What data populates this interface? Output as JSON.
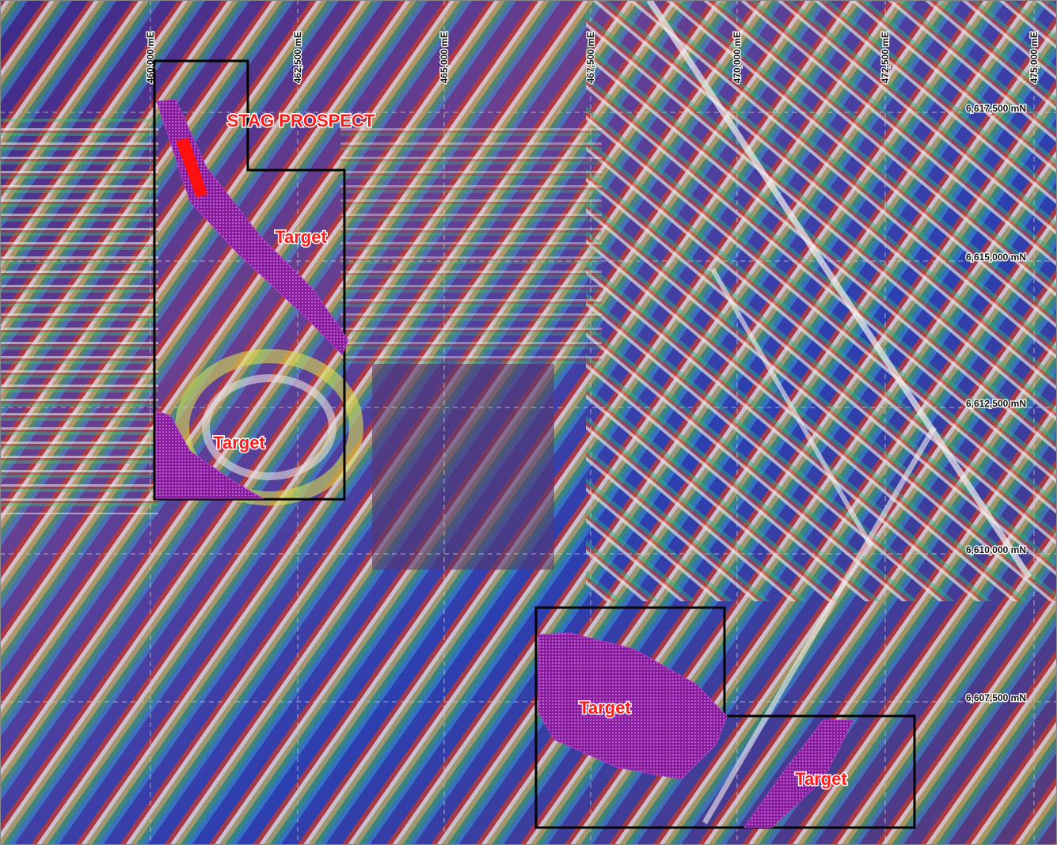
{
  "eastings": [
    "460,000 mE",
    "462,500 mE",
    "465,000 mE",
    "467,500 mE",
    "470,000 mE",
    "472,500 mE",
    "475,000 mE"
  ],
  "northings": [
    "6,617,500 mN",
    "6,615,000 mN",
    "6,612,500 mN",
    "6,610,000 mN",
    "6,607,500 mN"
  ],
  "prospect_label": "STAG PROSPECT",
  "targets": [
    "Target",
    "Target",
    "Target",
    "Target"
  ]
}
